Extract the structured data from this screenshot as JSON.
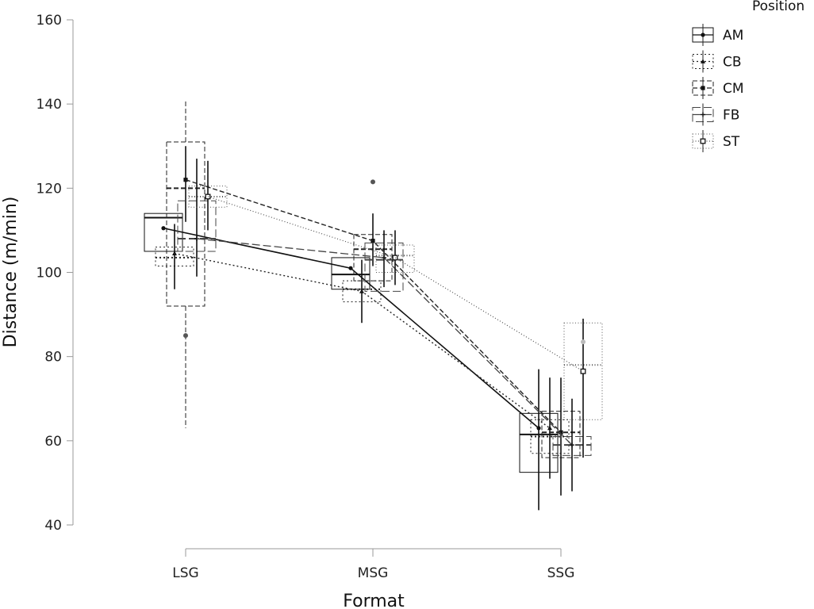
{
  "chart_data": {
    "type": "box",
    "xlabel": "Format",
    "ylabel": "Distance (m/min)",
    "categories": [
      "LSG",
      "MSG",
      "SSG"
    ],
    "ylim": [
      40,
      160
    ],
    "yticks": [
      40,
      60,
      80,
      100,
      120,
      140,
      160
    ],
    "grid": false,
    "legend": {
      "title": "Position",
      "placement": "top-right"
    },
    "series": [
      {
        "name": "AM",
        "line_style": "solid",
        "marker": "circle",
        "mean_line": [
          110.5,
          101.0,
          63.0
        ],
        "boxes": [
          {
            "category": "LSG",
            "q1": 105.0,
            "median": 113.0,
            "q3": 114.0,
            "mean": 110.5,
            "whisker_low": null,
            "whisker_high": null,
            "ci": [
              null,
              null
            ]
          },
          {
            "category": "MSG",
            "q1": 96.0,
            "median": 99.5,
            "q3": 103.5,
            "mean": 101.0,
            "whisker_low": null,
            "whisker_high": null,
            "ci": [
              null,
              null
            ]
          },
          {
            "category": "SSG",
            "q1": 52.5,
            "median": 61.5,
            "q3": 66.5,
            "mean": 63.0,
            "whisker_low": null,
            "whisker_high": null,
            "ci": [
              43.5,
              77.0
            ]
          }
        ],
        "outliers": []
      },
      {
        "name": "CB",
        "line_style": "dotted",
        "marker": "triangle",
        "mean_line": [
          104.5,
          95.5,
          63.0
        ],
        "boxes": [
          {
            "category": "LSG",
            "q1": 101.5,
            "median": 103.5,
            "q3": 106.0,
            "mean": 104.5,
            "whisker_low": null,
            "whisker_high": null,
            "ci": [
              96.0,
              111.5
            ]
          },
          {
            "category": "MSG",
            "q1": 93.0,
            "median": 96.0,
            "q3": 98.0,
            "mean": 95.5,
            "whisker_low": null,
            "whisker_high": null,
            "ci": [
              88.0,
              103.0
            ]
          },
          {
            "category": "SSG",
            "q1": 57.0,
            "median": 61.0,
            "q3": 65.0,
            "mean": 63.0,
            "whisker_low": null,
            "whisker_high": null,
            "ci": [
              51.0,
              75.0
            ]
          }
        ],
        "outliers": []
      },
      {
        "name": "CM",
        "line_style": "dashed",
        "marker": "square",
        "mean_line": [
          122.0,
          107.5,
          62.0
        ],
        "boxes": [
          {
            "category": "LSG",
            "q1": 92.0,
            "median": 120.0,
            "q3": 131.0,
            "mean": 122.0,
            "whisker_low": 63.0,
            "whisker_high": 141.0,
            "ci": [
              112.0,
              130.0
            ]
          },
          {
            "category": "MSG",
            "q1": 98.0,
            "median": 105.5,
            "q3": 109.0,
            "mean": 107.5,
            "whisker_low": null,
            "whisker_high": null,
            "ci": [
              101.5,
              114.0
            ]
          },
          {
            "category": "SSG",
            "q1": 56.0,
            "median": 62.0,
            "q3": 67.0,
            "mean": 62.0,
            "whisker_low": null,
            "whisker_high": null,
            "ci": [
              47.0,
              75.0
            ]
          }
        ],
        "outliers": [
          {
            "category": "LSG",
            "y": 85.0
          },
          {
            "category": "MSG",
            "y": 121.5
          }
        ]
      },
      {
        "name": "FB",
        "line_style": "longdash",
        "marker": "plus",
        "mean_line": [
          108.0,
          103.5,
          59.0
        ],
        "boxes": [
          {
            "category": "LSG",
            "q1": 105.0,
            "median": 108.0,
            "q3": 117.0,
            "mean": 108.0,
            "whisker_low": null,
            "whisker_high": null,
            "ci": [
              99.0,
              127.0
            ]
          },
          {
            "category": "MSG",
            "q1": 95.5,
            "median": 103.0,
            "q3": 107.0,
            "mean": 103.5,
            "whisker_low": null,
            "whisker_high": null,
            "ci": [
              96.5,
              110.0
            ]
          },
          {
            "category": "SSG",
            "q1": 56.5,
            "median": 59.0,
            "q3": 61.0,
            "mean": 59.0,
            "whisker_low": null,
            "whisker_high": null,
            "ci": [
              48.0,
              70.0
            ]
          }
        ],
        "outliers": []
      },
      {
        "name": "ST",
        "line_style": "fine-dotted",
        "marker": "square-hollow",
        "mean_line": [
          118.0,
          103.5,
          76.5
        ],
        "boxes": [
          {
            "category": "LSG",
            "q1": 115.5,
            "median": 118.0,
            "q3": 120.5,
            "mean": 118.0,
            "whisker_low": null,
            "whisker_high": null,
            "ci": [
              110.0,
              126.5
            ]
          },
          {
            "category": "MSG",
            "q1": 100.0,
            "median": 104.0,
            "q3": 106.5,
            "mean": 103.5,
            "whisker_low": null,
            "whisker_high": null,
            "ci": [
              97.0,
              110.0
            ]
          },
          {
            "category": "SSG",
            "q1": 65.0,
            "median": 78.0,
            "q3": 88.0,
            "mean": 76.5,
            "whisker_low": null,
            "whisker_high": null,
            "ci": [
              56.0,
              89.0
            ]
          }
        ],
        "outliers": [
          {
            "category": "SSG",
            "y": 83.5
          }
        ]
      }
    ]
  }
}
